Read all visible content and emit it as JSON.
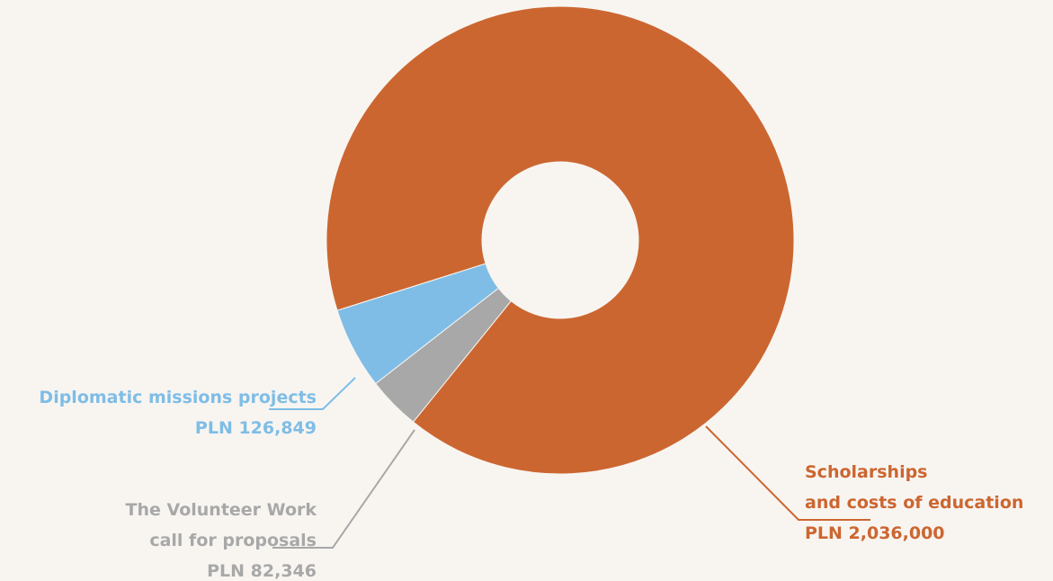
{
  "chart_data": {
    "type": "pie",
    "variant": "donut",
    "title": "",
    "legend": "none",
    "slices": [
      {
        "label_lines": [
          "Scholarships",
          "and costs of education"
        ],
        "value_text": "PLN 2,036,000",
        "value": 2036000,
        "color": "#cc6630"
      },
      {
        "label_lines": [
          "The Volunteer Work",
          "call for proposals"
        ],
        "value_text": "PLN 82,346",
        "value": 82346,
        "color": "#a8a8a8"
      },
      {
        "label_lines": [
          "Diplomatic missions projects"
        ],
        "value_text": "PLN 126,849",
        "value": 126849,
        "color": "#7fbde6"
      }
    ]
  }
}
